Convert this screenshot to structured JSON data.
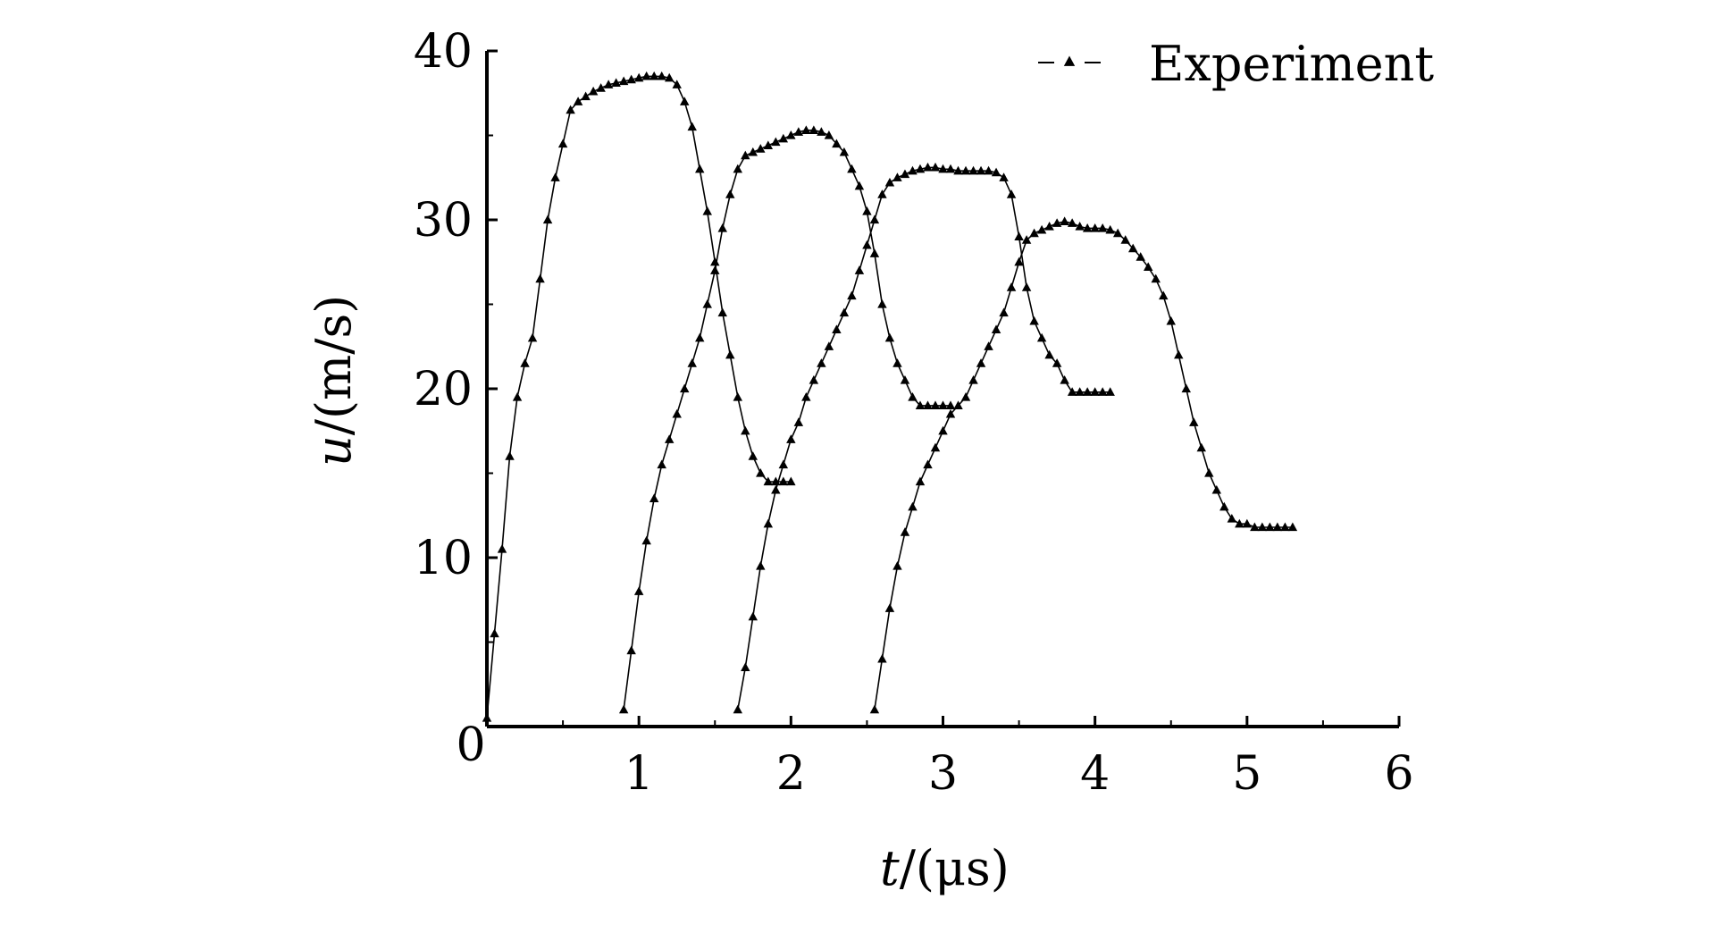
{
  "chart_data": {
    "type": "line",
    "xlabel_var": "t",
    "xlabel_unit": "/(μs)",
    "ylabel_var": "u",
    "ylabel_unit": "/(m/s)",
    "xlim": [
      0,
      6
    ],
    "ylim": [
      0,
      40
    ],
    "xticks": [
      "0",
      "1",
      "2",
      "3",
      "4",
      "5",
      "6"
    ],
    "yticks": [
      "0",
      "10",
      "20",
      "30",
      "40"
    ],
    "legend": {
      "label": "Experiment",
      "position": "top-right"
    },
    "grid": false,
    "series": [
      {
        "x": [
          0.0,
          0.05,
          0.1,
          0.15,
          0.2,
          0.25,
          0.3,
          0.35,
          0.4,
          0.45,
          0.5,
          0.55,
          0.6,
          0.65,
          0.7,
          0.75,
          0.8,
          0.85,
          0.9,
          0.95,
          1.0,
          1.05,
          1.1,
          1.15,
          1.2,
          1.25,
          1.3,
          1.35,
          1.4,
          1.45,
          1.5,
          1.55,
          1.6,
          1.65,
          1.7,
          1.75,
          1.8,
          1.85,
          1.9,
          1.95,
          2.0
        ],
        "y": [
          0.5,
          5.5,
          10.5,
          16.0,
          19.5,
          21.5,
          23.0,
          26.5,
          30.0,
          32.5,
          34.5,
          36.5,
          37.0,
          37.3,
          37.6,
          37.8,
          38.0,
          38.1,
          38.2,
          38.3,
          38.4,
          38.5,
          38.5,
          38.5,
          38.4,
          38.0,
          37.0,
          35.5,
          33.0,
          30.5,
          27.5,
          24.5,
          22.0,
          19.5,
          17.5,
          16.0,
          15.0,
          14.5,
          14.5,
          14.5,
          14.5
        ]
      },
      {
        "x": [
          0.9,
          0.95,
          1.0,
          1.05,
          1.1,
          1.15,
          1.2,
          1.25,
          1.3,
          1.35,
          1.4,
          1.45,
          1.5,
          1.55,
          1.6,
          1.65,
          1.7,
          1.75,
          1.8,
          1.85,
          1.9,
          1.95,
          2.0,
          2.05,
          2.1,
          2.15,
          2.2,
          2.25,
          2.3,
          2.35,
          2.4,
          2.45,
          2.5,
          2.55,
          2.6,
          2.65,
          2.7,
          2.75,
          2.8,
          2.85,
          2.9,
          2.95,
          3.0,
          3.05
        ],
        "y": [
          1.0,
          4.5,
          8.0,
          11.0,
          13.5,
          15.5,
          17.0,
          18.5,
          20.0,
          21.5,
          23.0,
          25.0,
          27.0,
          29.5,
          31.5,
          33.0,
          33.8,
          34.0,
          34.2,
          34.4,
          34.6,
          34.8,
          35.0,
          35.2,
          35.3,
          35.3,
          35.2,
          35.0,
          34.5,
          34.0,
          33.0,
          32.0,
          30.5,
          28.0,
          25.0,
          23.0,
          21.5,
          20.5,
          19.5,
          19.0,
          19.0,
          19.0,
          19.0,
          19.0
        ]
      },
      {
        "x": [
          1.65,
          1.7,
          1.75,
          1.8,
          1.85,
          1.9,
          1.95,
          2.0,
          2.05,
          2.1,
          2.15,
          2.2,
          2.25,
          2.3,
          2.35,
          2.4,
          2.45,
          2.5,
          2.55,
          2.6,
          2.65,
          2.7,
          2.75,
          2.8,
          2.85,
          2.9,
          2.95,
          3.0,
          3.05,
          3.1,
          3.15,
          3.2,
          3.25,
          3.3,
          3.35,
          3.4,
          3.45,
          3.5,
          3.55,
          3.6,
          3.65,
          3.7,
          3.75,
          3.8,
          3.85,
          3.9,
          3.95,
          4.0,
          4.05,
          4.1
        ],
        "y": [
          1.0,
          3.5,
          6.5,
          9.5,
          12.0,
          14.0,
          15.5,
          17.0,
          18.0,
          19.5,
          20.5,
          21.5,
          22.5,
          23.5,
          24.5,
          25.5,
          27.0,
          28.5,
          30.0,
          31.5,
          32.2,
          32.5,
          32.7,
          32.9,
          33.0,
          33.1,
          33.1,
          33.0,
          33.0,
          32.9,
          32.9,
          32.9,
          32.9,
          32.9,
          32.8,
          32.5,
          31.5,
          29.0,
          26.0,
          24.0,
          23.0,
          22.0,
          21.5,
          20.5,
          19.8,
          19.8,
          19.8,
          19.8,
          19.8,
          19.8
        ]
      },
      {
        "x": [
          2.55,
          2.6,
          2.65,
          2.7,
          2.75,
          2.8,
          2.85,
          2.9,
          2.95,
          3.0,
          3.05,
          3.1,
          3.15,
          3.2,
          3.25,
          3.3,
          3.35,
          3.4,
          3.45,
          3.5,
          3.55,
          3.6,
          3.65,
          3.7,
          3.75,
          3.8,
          3.85,
          3.9,
          3.95,
          4.0,
          4.05,
          4.1,
          4.15,
          4.2,
          4.25,
          4.3,
          4.35,
          4.4,
          4.45,
          4.5,
          4.55,
          4.6,
          4.65,
          4.7,
          4.75,
          4.8,
          4.85,
          4.9,
          4.95,
          5.0,
          5.05,
          5.1,
          5.15,
          5.2,
          5.25,
          5.3
        ],
        "y": [
          1.0,
          4.0,
          7.0,
          9.5,
          11.5,
          13.0,
          14.5,
          15.5,
          16.5,
          17.5,
          18.5,
          19.0,
          19.5,
          20.5,
          21.5,
          22.5,
          23.5,
          24.5,
          26.0,
          27.5,
          28.8,
          29.2,
          29.4,
          29.6,
          29.8,
          29.9,
          29.8,
          29.6,
          29.5,
          29.5,
          29.5,
          29.4,
          29.2,
          28.8,
          28.3,
          27.8,
          27.2,
          26.5,
          25.5,
          24.0,
          22.0,
          20.0,
          18.0,
          16.5,
          15.0,
          14.0,
          13.0,
          12.3,
          12.0,
          12.0,
          11.8,
          11.8,
          11.8,
          11.8,
          11.8,
          11.8
        ]
      }
    ]
  }
}
